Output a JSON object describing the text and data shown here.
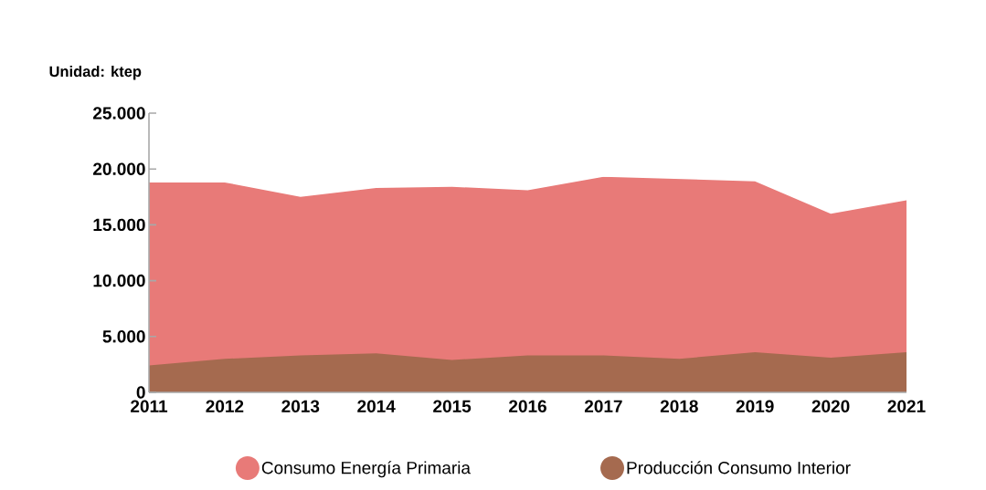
{
  "chart_data": {
    "type": "area",
    "ylabel": "Unidad: ktep",
    "categories": [
      "2011",
      "2012",
      "2013",
      "2014",
      "2015",
      "2016",
      "2017",
      "2018",
      "2019",
      "2020",
      "2021"
    ],
    "series": [
      {
        "name": "Consumo Energía Primaria",
        "color": "#e87a78",
        "values": [
          18800,
          18800,
          17500,
          18300,
          18400,
          18100,
          19300,
          19100,
          18900,
          16000,
          17200
        ]
      },
      {
        "name": "Producción Consumo Interior",
        "color": "#a56a4f",
        "values": [
          2400,
          3000,
          3300,
          3500,
          2900,
          3300,
          3300,
          3000,
          3600,
          3100,
          3600
        ]
      }
    ],
    "ylim": [
      0,
      25000
    ],
    "yticks": [
      0,
      {
        "value": 5000,
        "label": "5.000"
      },
      {
        "value": 10000,
        "label": "10.000"
      },
      {
        "value": 15000,
        "label": "15.000"
      },
      {
        "value": 20000,
        "label": "20.000"
      },
      {
        "value": 25000,
        "label": "25.000"
      }
    ],
    "legend": "bottom"
  }
}
